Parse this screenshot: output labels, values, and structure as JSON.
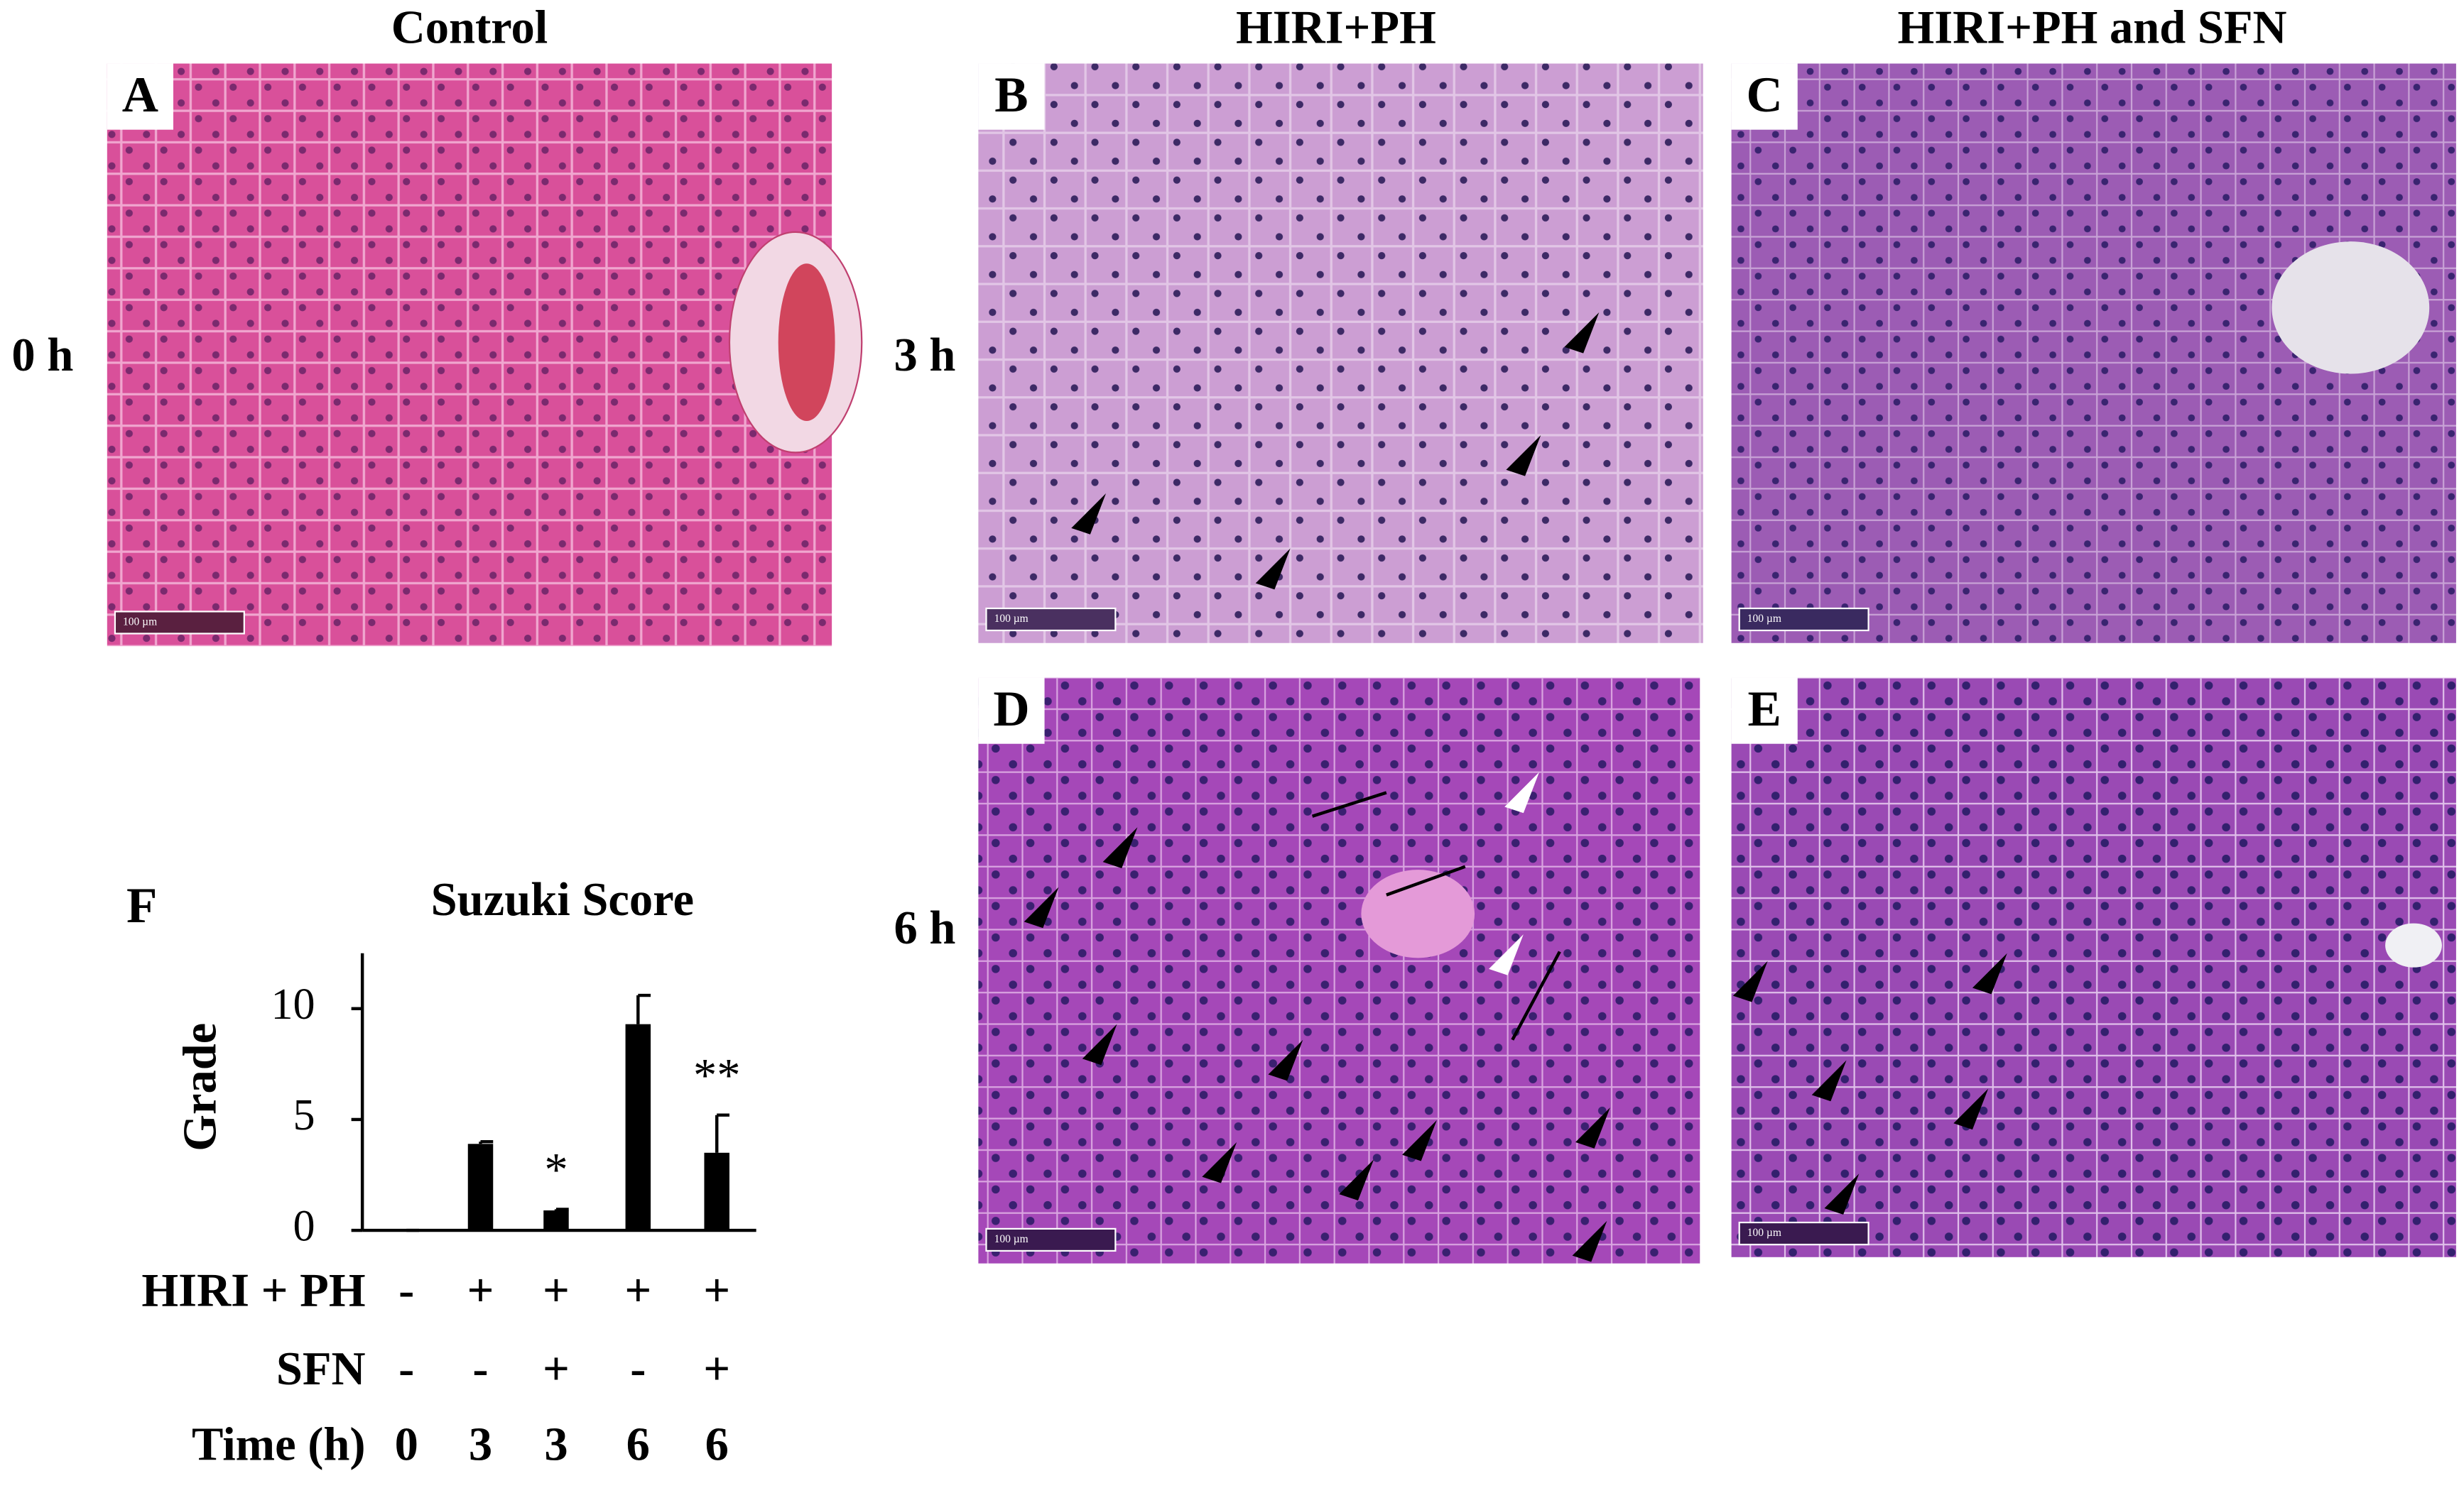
{
  "figure": {
    "columns": [
      "Control",
      "HIRI+PH",
      "HIRI+PH and SFN"
    ],
    "rows": [
      "0 h",
      "3 h",
      "6 h"
    ],
    "panels": [
      {
        "letter": "A",
        "scale_bar": "100 µm"
      },
      {
        "letter": "B",
        "scale_bar": "100 µm"
      },
      {
        "letter": "C",
        "scale_bar": "100 µm"
      },
      {
        "letter": "D",
        "scale_bar": "100 µm"
      },
      {
        "letter": "E",
        "scale_bar": "100 µm"
      }
    ]
  },
  "chart_data": {
    "type": "bar",
    "label": "F",
    "title": "Suzuki Score",
    "y_label": "Grade",
    "categories": [
      null,
      null,
      null,
      null,
      null
    ],
    "values": [
      0,
      3.9,
      0.9,
      9.3,
      3.5
    ],
    "errors": [
      0,
      0.1,
      0.05,
      1.3,
      1.7
    ],
    "significance": [
      null,
      null,
      "*",
      null,
      "**"
    ],
    "color": "#000000",
    "ylim": [
      0,
      12.5
    ],
    "yticks": [
      0,
      5,
      10
    ],
    "conditions": [
      {
        "label": "HIRI + PH",
        "values": [
          "-",
          "+",
          "+",
          "+",
          "+"
        ]
      },
      {
        "label": "SFN",
        "values": [
          "-",
          "-",
          "+",
          "-",
          "+"
        ]
      },
      {
        "label": "Time (h)",
        "values": [
          0,
          3,
          3,
          6,
          6
        ]
      }
    ]
  }
}
